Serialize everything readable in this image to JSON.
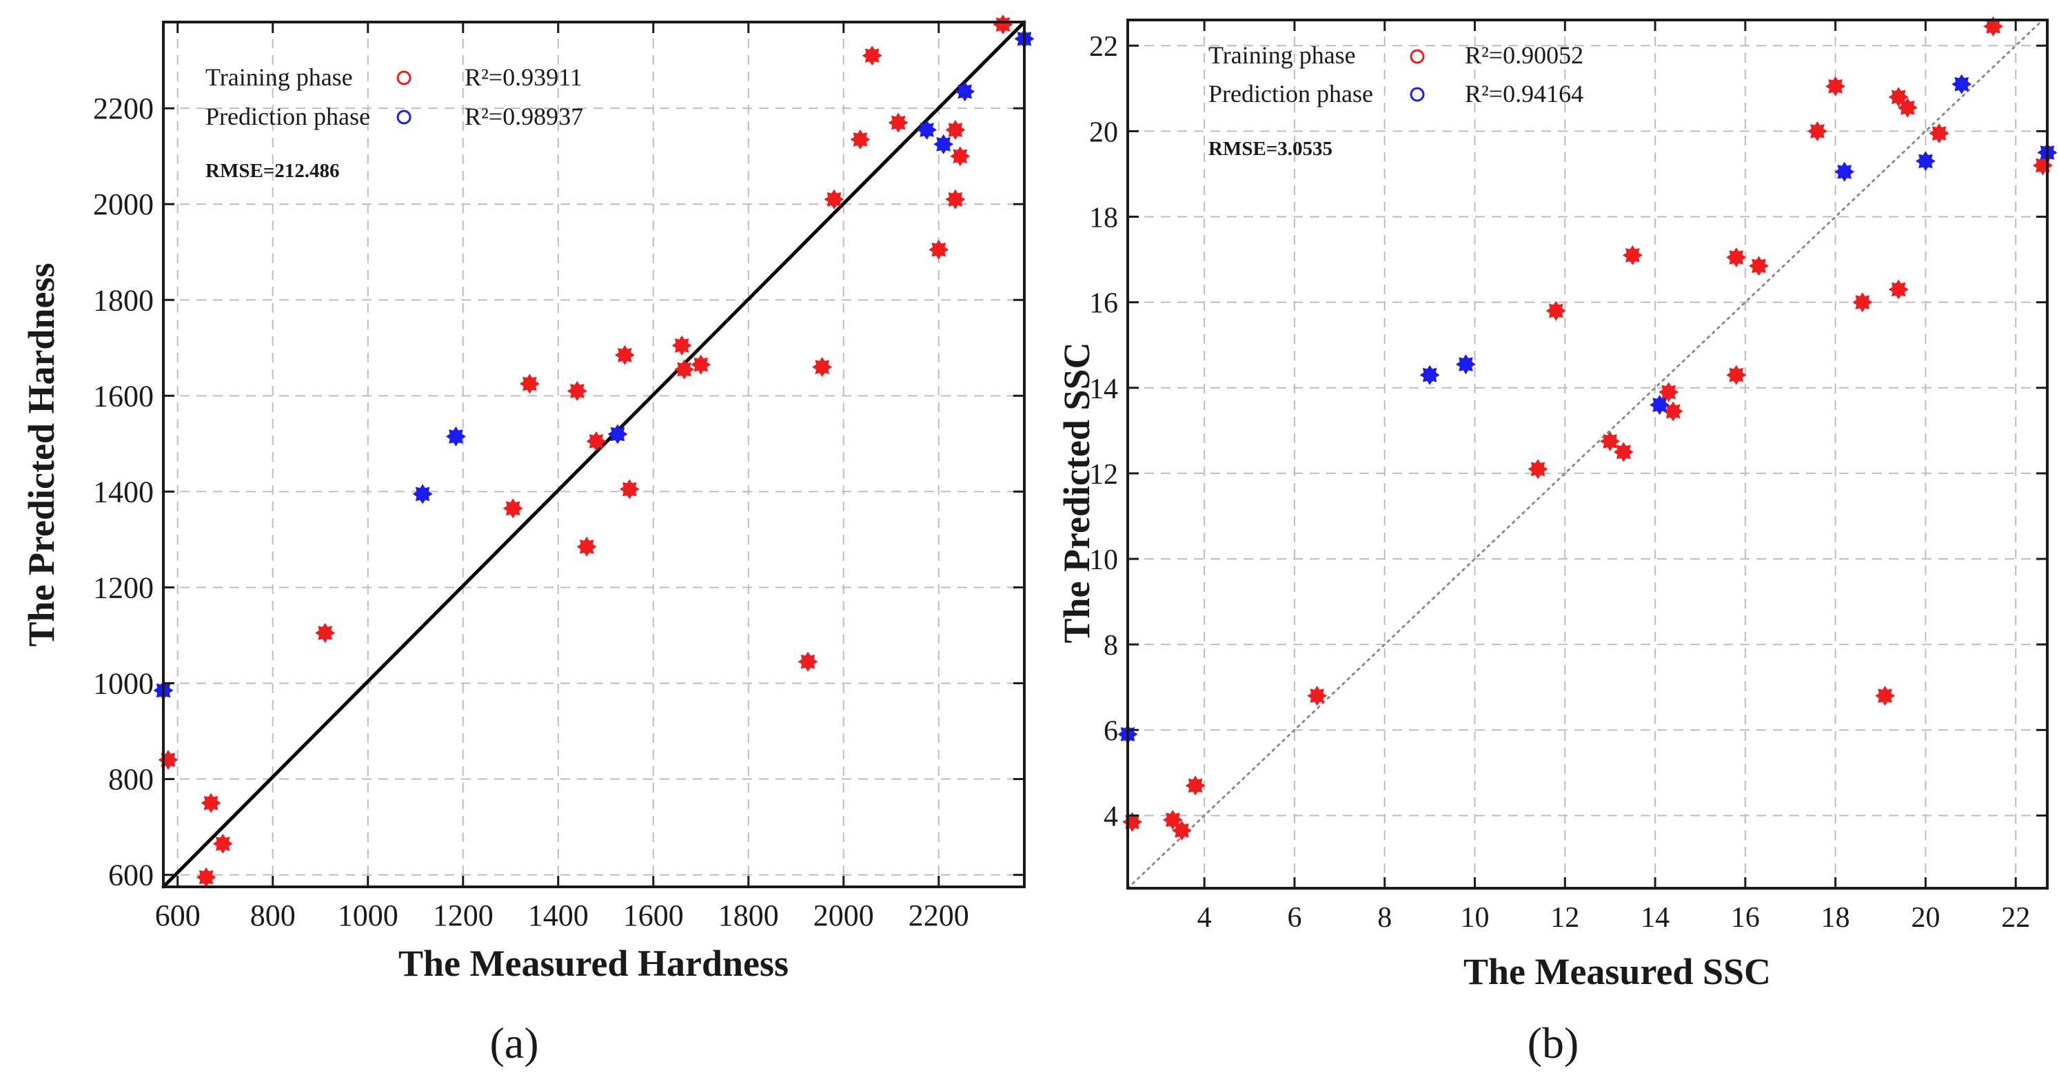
{
  "colors": {
    "training": "#ee1c1c",
    "prediction": "#1c1cee",
    "axis": "#1a1a1a",
    "grid": "#bdbdbd",
    "fit_line_a": "#000000",
    "fit_line_b": "#8a8a8a"
  },
  "chart_data": [
    {
      "panel_label": "(a)",
      "type": "scatter",
      "xlabel": "The Measured Hardness",
      "ylabel": "The Predicted Hardness",
      "xlim": [
        570,
        2380
      ],
      "ylim": [
        575,
        2380
      ],
      "xticks": [
        600,
        800,
        1000,
        1200,
        1400,
        1600,
        1800,
        2000,
        2200
      ],
      "yticks": [
        600,
        800,
        1000,
        1200,
        1400,
        1600,
        1800,
        2000,
        2200
      ],
      "grid": true,
      "reference_line": {
        "style": "solid",
        "from": [
          570,
          575
        ],
        "to": [
          2380,
          2380
        ]
      },
      "legend": [
        {
          "name": "Training phase",
          "r2": "R²=0.93911"
        },
        {
          "name": "Prediction phase",
          "r2": "R²=0.98937"
        }
      ],
      "rmse": "RMSE=212.486",
      "series": [
        {
          "name": "Training phase",
          "points": [
            [
              580,
              840
            ],
            [
              670,
              750
            ],
            [
              695,
              665
            ],
            [
              660,
              595
            ],
            [
              910,
              1105
            ],
            [
              1305,
              1365
            ],
            [
              1340,
              1625
            ],
            [
              1440,
              1610
            ],
            [
              1460,
              1285
            ],
            [
              1480,
              1505
            ],
            [
              1540,
              1685
            ],
            [
              1550,
              1405
            ],
            [
              1660,
              1705
            ],
            [
              1665,
              1655
            ],
            [
              1700,
              1665
            ],
            [
              1925,
              1045
            ],
            [
              1955,
              1660
            ],
            [
              1980,
              2010
            ],
            [
              2035,
              2135
            ],
            [
              2060,
              2310
            ],
            [
              2115,
              2170
            ],
            [
              2200,
              1905
            ],
            [
              2235,
              2010
            ],
            [
              2235,
              2155
            ],
            [
              2245,
              2100
            ],
            [
              2335,
              2375
            ]
          ]
        },
        {
          "name": "Prediction phase",
          "points": [
            [
              570,
              985
            ],
            [
              1115,
              1395
            ],
            [
              1185,
              1515
            ],
            [
              1525,
              1520
            ],
            [
              2175,
              2155
            ],
            [
              2210,
              2125
            ],
            [
              2255,
              2235
            ],
            [
              2380,
              2345
            ]
          ]
        }
      ]
    },
    {
      "panel_label": "(b)",
      "type": "scatter",
      "xlabel": "The Measured SSC",
      "ylabel": "The Predicted SSC",
      "xlim": [
        2.3,
        22.7
      ],
      "ylim": [
        2.3,
        22.6
      ],
      "xticks": [
        4,
        6,
        8,
        10,
        12,
        14,
        16,
        18,
        20,
        22
      ],
      "yticks": [
        4,
        6,
        8,
        10,
        12,
        14,
        16,
        18,
        20,
        22
      ],
      "grid": true,
      "reference_line": {
        "style": "dotted",
        "from": [
          2.3,
          2.3
        ],
        "to": [
          22.6,
          22.6
        ]
      },
      "legend": [
        {
          "name": "Training phase",
          "r2": "R²=0.90052"
        },
        {
          "name": "Prediction phase",
          "r2": "R²=0.94164"
        }
      ],
      "rmse": "RMSE=3.0535",
      "series": [
        {
          "name": "Training phase",
          "points": [
            [
              2.4,
              3.85
            ],
            [
              3.3,
              3.9
            ],
            [
              3.5,
              3.65
            ],
            [
              3.8,
              4.7
            ],
            [
              6.5,
              6.8
            ],
            [
              11.4,
              12.1
            ],
            [
              11.8,
              15.8
            ],
            [
              13.0,
              12.75
            ],
            [
              13.3,
              12.5
            ],
            [
              13.5,
              17.1
            ],
            [
              14.3,
              13.9
            ],
            [
              14.4,
              13.45
            ],
            [
              15.8,
              14.3
            ],
            [
              15.8,
              17.05
            ],
            [
              16.3,
              16.85
            ],
            [
              17.6,
              20.0
            ],
            [
              18.0,
              21.05
            ],
            [
              18.6,
              16.0
            ],
            [
              19.1,
              6.8
            ],
            [
              19.4,
              16.3
            ],
            [
              19.4,
              20.8
            ],
            [
              19.6,
              20.55
            ],
            [
              20.3,
              19.95
            ],
            [
              21.5,
              22.45
            ],
            [
              22.6,
              19.2
            ]
          ]
        },
        {
          "name": "Prediction phase",
          "points": [
            [
              2.3,
              5.9
            ],
            [
              9.0,
              14.3
            ],
            [
              9.8,
              14.55
            ],
            [
              14.1,
              13.6
            ],
            [
              18.2,
              19.05
            ],
            [
              20.0,
              19.3
            ],
            [
              20.8,
              21.1
            ],
            [
              22.7,
              19.5
            ]
          ]
        }
      ]
    }
  ]
}
